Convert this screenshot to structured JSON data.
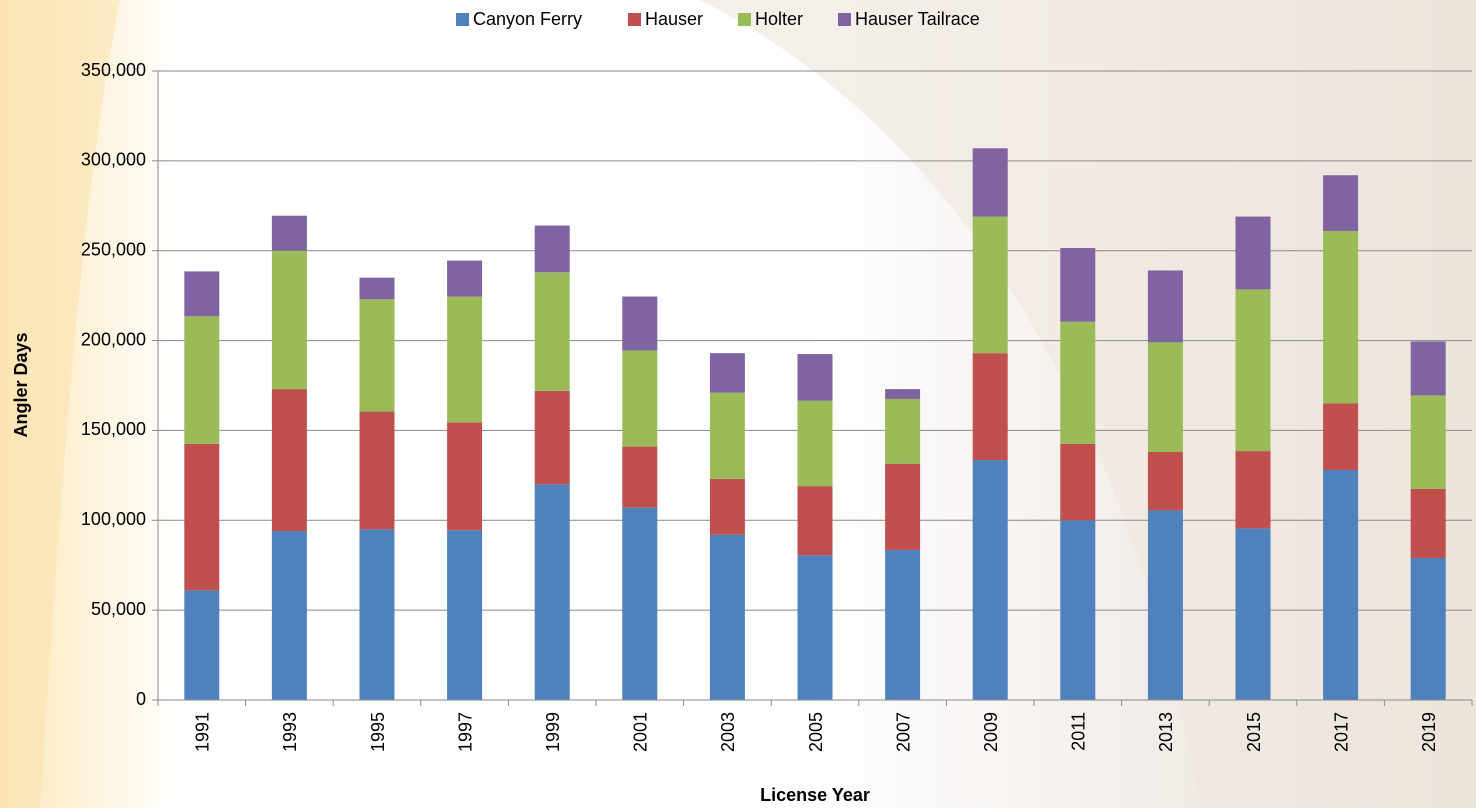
{
  "chart_data": {
    "type": "stacked_bar",
    "x_label": "License Year",
    "y_label": "Angler Days",
    "categories": [
      "1991",
      "1993",
      "1995",
      "1997",
      "1999",
      "2001",
      "2003",
      "2005",
      "2007",
      "2009",
      "2011",
      "2013",
      "2015",
      "2017",
      "2019"
    ],
    "series": [
      {
        "name": "Canyon Ferry",
        "color": "#4f81bd",
        "values": [
          61000,
          94000,
          95000,
          94500,
          120000,
          107000,
          92000,
          80500,
          83500,
          133500,
          100000,
          105500,
          95500,
          128000,
          79000
        ]
      },
      {
        "name": "Hauser",
        "color": "#c0504d",
        "values": [
          81500,
          79000,
          65500,
          60000,
          52000,
          34000,
          31000,
          38500,
          48000,
          59500,
          42500,
          32500,
          43000,
          37000,
          38500
        ]
      },
      {
        "name": "Holter",
        "color": "#9bbb59",
        "values": [
          71000,
          77000,
          62500,
          70000,
          66000,
          53500,
          48000,
          47500,
          36000,
          76000,
          68000,
          61000,
          90000,
          96000,
          52000
        ]
      },
      {
        "name": "Hauser Tailrace",
        "color": "#8064a2",
        "values": [
          25000,
          19500,
          12000,
          20000,
          26000,
          30000,
          22000,
          26000,
          5500,
          38000,
          41000,
          40000,
          40500,
          31000,
          30000
        ]
      }
    ],
    "ylim": [
      0,
      350000
    ],
    "yticks": [
      0,
      {
        "value": 50000,
        "label": "50,000"
      },
      {
        "value": 100000,
        "label": "100,000"
      },
      {
        "value": 150000,
        "label": "150,000"
      },
      {
        "value": 200000,
        "label": "200,000"
      },
      {
        "value": 250000,
        "label": "250,000"
      },
      {
        "value": 300000,
        "label": "300,000"
      },
      {
        "value": 350000,
        "label": "350,000"
      }
    ],
    "grid": true,
    "legend": "top"
  }
}
